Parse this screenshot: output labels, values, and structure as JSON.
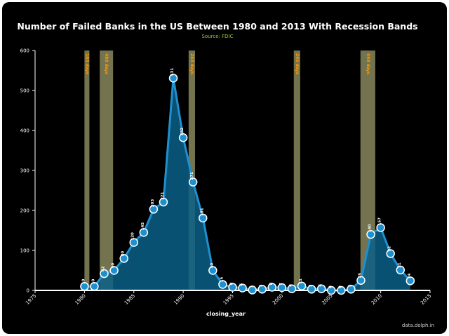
{
  "chart_data": {
    "type": "area",
    "title": "Number of Failed Banks in the US Between 1980 and 2013 With Recession Bands",
    "subtitle": "Source: FDIC",
    "xlabel": "closing_year",
    "ylabel": "",
    "xlim": [
      1975,
      2015
    ],
    "ylim": [
      0,
      600
    ],
    "x_ticks": [
      "1975",
      "1980",
      "1985",
      "1990",
      "1995",
      "2000",
      "2005",
      "2010",
      "2015"
    ],
    "y_ticks": [
      "0",
      "100",
      "200",
      "300",
      "400",
      "500",
      "600"
    ],
    "grid": false,
    "legend": "none",
    "x": [
      1980,
      1981,
      1982,
      1983,
      1984,
      1985,
      1986,
      1987,
      1988,
      1989,
      1990,
      1991,
      1992,
      1993,
      1994,
      1995,
      1996,
      1997,
      1998,
      1999,
      2000,
      2001,
      2002,
      2003,
      2004,
      2005,
      2006,
      2007,
      2008,
      2009,
      2010,
      2011,
      2012,
      2013
    ],
    "y": [
      10,
      10,
      42,
      50,
      80,
      120,
      145,
      203,
      221,
      531,
      382,
      271,
      181,
      50,
      15,
      8,
      6,
      1,
      3,
      8,
      7,
      4,
      11,
      3,
      4,
      0,
      0,
      3,
      25,
      140,
      157,
      92,
      51,
      24
    ],
    "point_labels": [
      "10",
      "10",
      "42",
      "50",
      "80",
      "120",
      "145",
      "203",
      "221",
      "531",
      "382",
      "271",
      "181",
      "50",
      "15",
      "8",
      "6",
      "1",
      "3",
      "8",
      "7",
      "4",
      "11",
      "3",
      "4",
      "0",
      "0",
      "3",
      "25",
      "140",
      "157",
      "92",
      "51",
      "24"
    ],
    "recessions": [
      {
        "start": 1980.0,
        "end": 1980.5,
        "label": "183 days"
      },
      {
        "start": 1981.55,
        "end": 1982.9,
        "label": "488 days"
      },
      {
        "start": 1990.55,
        "end": 1991.2,
        "label": "243 days"
      },
      {
        "start": 2001.2,
        "end": 2001.85,
        "label": "245 days"
      },
      {
        "start": 2007.95,
        "end": 2009.45,
        "label": "548 days"
      }
    ],
    "colors": {
      "line": "#1e90d0",
      "area": "#0b5f86",
      "point": "#1e90d0",
      "band": "#9a9a6a",
      "band_label": "#ff9900",
      "background": "#000000"
    }
  },
  "credit": "data.dolph.in"
}
